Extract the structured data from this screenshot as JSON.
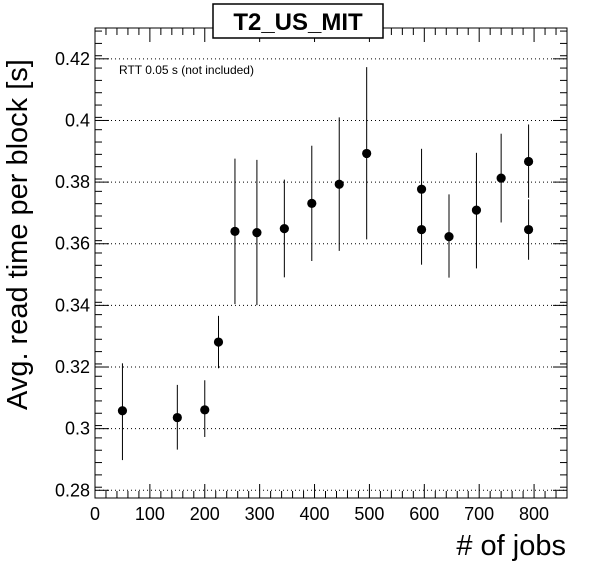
{
  "chart_data": {
    "type": "scatter",
    "title": "T2_US_MIT",
    "xlabel": "# of jobs",
    "ylabel": "Avg. read time per block [s]",
    "annotation": "RTT 0.05 s (not included)",
    "xlim": [
      0,
      860
    ],
    "ylim": [
      0.2775,
      0.43
    ],
    "xticks": [
      0,
      100,
      200,
      300,
      400,
      500,
      600,
      700,
      800
    ],
    "yticks": [
      0.28,
      0.3,
      0.32,
      0.34,
      0.36,
      0.38,
      0.4,
      0.42
    ],
    "grid": "horizontal dotted",
    "marker_color": "#000000",
    "points": [
      {
        "x": 50,
        "y": 0.3058,
        "ylow": 0.2898,
        "yhigh": 0.3212
      },
      {
        "x": 150,
        "y": 0.3036,
        "ylow": 0.2932,
        "yhigh": 0.3142
      },
      {
        "x": 200,
        "y": 0.3061,
        "ylow": 0.2973,
        "yhigh": 0.3157
      },
      {
        "x": 225,
        "y": 0.3281,
        "ylow": 0.3196,
        "yhigh": 0.3366
      },
      {
        "x": 255,
        "y": 0.364,
        "ylow": 0.3404,
        "yhigh": 0.3876
      },
      {
        "x": 295,
        "y": 0.3636,
        "ylow": 0.3401,
        "yhigh": 0.3872
      },
      {
        "x": 345,
        "y": 0.3649,
        "ylow": 0.3491,
        "yhigh": 0.3808
      },
      {
        "x": 395,
        "y": 0.3731,
        "ylow": 0.3544,
        "yhigh": 0.3918
      },
      {
        "x": 445,
        "y": 0.3793,
        "ylow": 0.3577,
        "yhigh": 0.401
      },
      {
        "x": 495,
        "y": 0.3893,
        "ylow": 0.3614,
        "yhigh": 0.4173
      },
      {
        "x": 595,
        "y": 0.3777,
        "ylow": 0.3646,
        "yhigh": 0.3908
      },
      {
        "x": 595,
        "y": 0.3646,
        "ylow": 0.3532,
        "yhigh": 0.376
      },
      {
        "x": 645,
        "y": 0.3623,
        "ylow": 0.349,
        "yhigh": 0.376
      },
      {
        "x": 695,
        "y": 0.3709,
        "ylow": 0.352,
        "yhigh": 0.3895
      },
      {
        "x": 740,
        "y": 0.3813,
        "ylow": 0.3669,
        "yhigh": 0.3957
      },
      {
        "x": 790,
        "y": 0.3867,
        "ylow": 0.3749,
        "yhigh": 0.3987
      },
      {
        "x": 790,
        "y": 0.3646,
        "ylow": 0.3548,
        "yhigh": 0.3744
      }
    ]
  }
}
